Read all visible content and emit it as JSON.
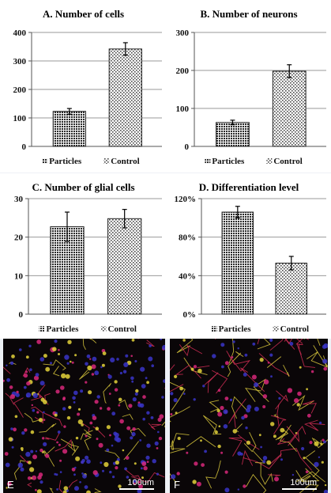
{
  "chart_data": [
    {
      "type": "bar",
      "title": "A. Number of cells",
      "categories": [
        "Particles",
        "Control"
      ],
      "values": [
        123,
        342
      ],
      "errors": [
        10,
        22
      ],
      "ylim": [
        0,
        400
      ],
      "yticks": [
        "0",
        "100",
        "200",
        "300",
        "400"
      ],
      "legend": [
        "Particles",
        "Control"
      ],
      "grid": true,
      "legend_position": "bottom"
    },
    {
      "type": "bar",
      "title": "B. Number of neurons",
      "categories": [
        "Particles",
        "Control"
      ],
      "values": [
        63,
        198
      ],
      "errors": [
        6,
        17
      ],
      "ylim": [
        0,
        300
      ],
      "yticks": [
        "0",
        "100",
        "200",
        "300"
      ],
      "legend": [
        "Particles",
        "Control"
      ],
      "grid": true,
      "legend_position": "bottom"
    },
    {
      "type": "bar",
      "title": "C. Number of glial cells",
      "categories": [
        "Particles",
        "Control"
      ],
      "values": [
        22.7,
        24.8
      ],
      "errors": [
        3.8,
        2.4
      ],
      "ylim": [
        0,
        30
      ],
      "yticks": [
        "0",
        "10",
        "20",
        "30"
      ],
      "legend": [
        "Particles",
        "Control"
      ],
      "grid": true,
      "legend_position": "bottom"
    },
    {
      "type": "bar",
      "title": "D. Differentiation level",
      "categories": [
        "Particles",
        "Control"
      ],
      "values": [
        1.06,
        0.53
      ],
      "errors": [
        0.06,
        0.07
      ],
      "ylim": [
        0,
        1.2
      ],
      "yticks": [
        "0%",
        "40%",
        "80%",
        "120%"
      ],
      "legend": [
        "Particles",
        "Control"
      ],
      "grid": true,
      "legend_position": "bottom"
    }
  ],
  "images": [
    {
      "letter": "E",
      "scale": "100um"
    },
    {
      "letter": "F",
      "scale": "100um"
    }
  ],
  "colors": {
    "particles": "#2a2a2a",
    "control": "#bdbdbd",
    "grid": "#9a9a9a"
  }
}
